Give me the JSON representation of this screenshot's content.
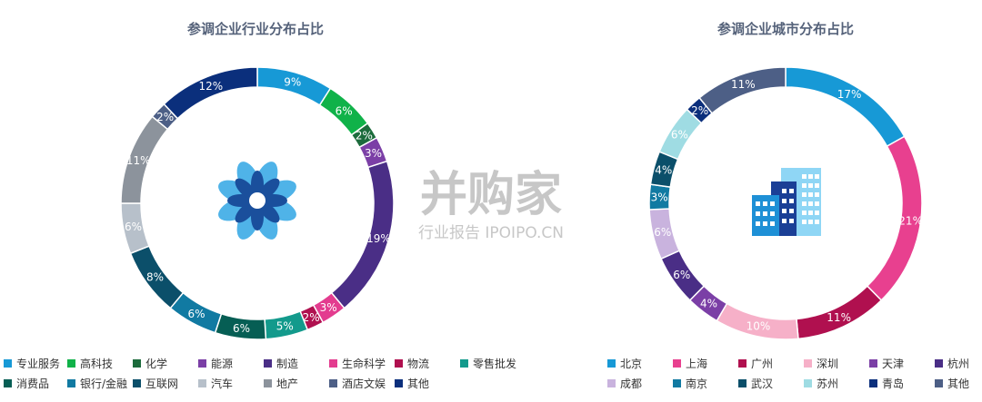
{
  "watermark": {
    "brand": "并购家",
    "sub": "行业报告 IPOIPO.CN"
  },
  "chart_data": [
    {
      "type": "donut",
      "title": "参调企业行业分布占比",
      "unit": "%",
      "center_icon": "flower-logo-icon",
      "slices": [
        {
          "name": "专业服务",
          "value": 9,
          "color": "#1799d6"
        },
        {
          "name": "高科技",
          "value": 6,
          "color": "#10b249"
        },
        {
          "name": "化学",
          "value": 2,
          "color": "#1c6b3c"
        },
        {
          "name": "能源",
          "value": 3,
          "color": "#7b3fa6"
        },
        {
          "name": "制造",
          "value": 19,
          "color": "#4a2e86"
        },
        {
          "name": "生命科学",
          "value": 3,
          "color": "#e33c8f"
        },
        {
          "name": "物流",
          "value": 2,
          "color": "#b0104f"
        },
        {
          "name": "零售批发",
          "value": 5,
          "color": "#139a8c"
        },
        {
          "name": "消费品",
          "value": 6,
          "color": "#065e54"
        },
        {
          "name": "银行/金融",
          "value": 6,
          "color": "#117aa2"
        },
        {
          "name": "互联网",
          "value": 8,
          "color": "#0b4f6a"
        },
        {
          "name": "汽车",
          "value": 6,
          "color": "#b7c0ca"
        },
        {
          "name": "地产",
          "value": 11,
          "color": "#8c939c"
        },
        {
          "name": "酒店文娱",
          "value": 2,
          "color": "#4d5f86"
        },
        {
          "name": "其他",
          "value": 12,
          "color": "#0b2f7c"
        }
      ],
      "legend_position": "bottom"
    },
    {
      "type": "donut",
      "title": "参调企业城市分布占比",
      "unit": "%",
      "center_icon": "buildings-icon",
      "slices": [
        {
          "name": "北京",
          "value": 17,
          "color": "#1799d6"
        },
        {
          "name": "上海",
          "value": 21,
          "color": "#e8408f"
        },
        {
          "name": "广州",
          "value": 11,
          "color": "#b0104f"
        },
        {
          "name": "深圳",
          "value": 10,
          "color": "#f6b0c8"
        },
        {
          "name": "天津",
          "value": 4,
          "color": "#7b3fa6"
        },
        {
          "name": "杭州",
          "value": 6,
          "color": "#4a2e86"
        },
        {
          "name": "成都",
          "value": 6,
          "color": "#c9b3de"
        },
        {
          "name": "南京",
          "value": 3,
          "color": "#117aa2"
        },
        {
          "name": "武汉",
          "value": 4,
          "color": "#0b4f6a"
        },
        {
          "name": "苏州",
          "value": 6,
          "color": "#9fdce3"
        },
        {
          "name": "青岛",
          "value": 2,
          "color": "#0b2f7c"
        },
        {
          "name": "其他",
          "value": 11,
          "color": "#4d5f86"
        }
      ],
      "legend_position": "bottom"
    }
  ]
}
